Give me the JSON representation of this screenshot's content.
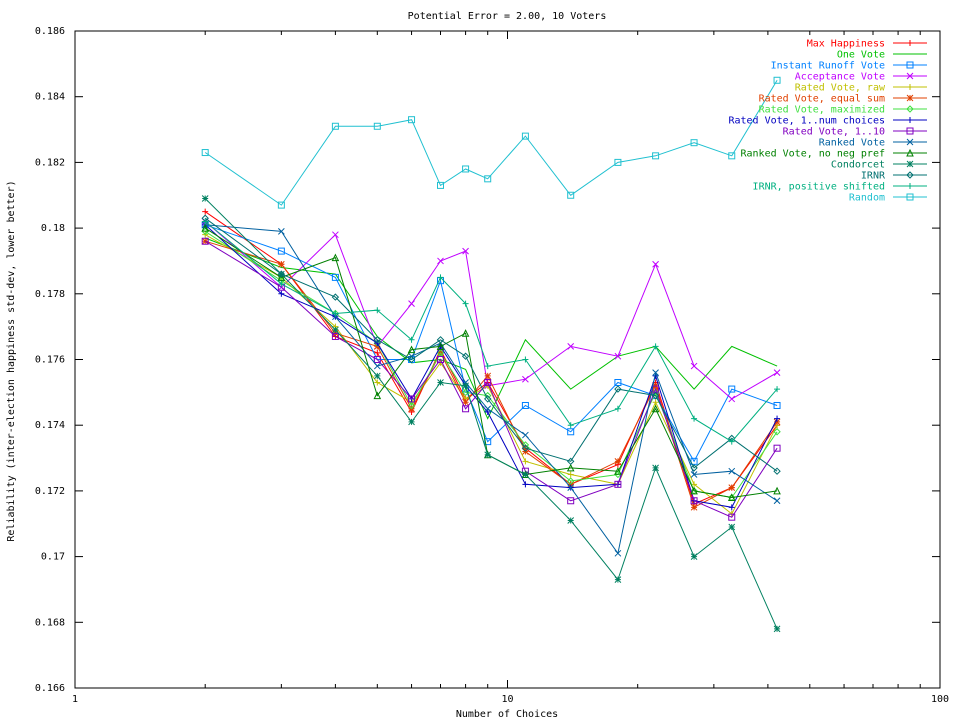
{
  "chart_data": {
    "type": "line",
    "title": "Potential Error = 2.00, 10 Voters",
    "xlabel": "Number of Choices",
    "ylabel": "Reliability (inter-election happiness std-dev, lower better)",
    "x_scale": "log",
    "xlim": [
      1,
      100
    ],
    "ylim": [
      0.166,
      0.186
    ],
    "x_ticks": [
      1,
      10,
      100
    ],
    "x_tick_labels": [
      "1",
      "10",
      "100"
    ],
    "y_ticks": [
      0.166,
      0.168,
      0.17,
      0.172,
      0.174,
      0.176,
      0.178,
      0.18,
      0.182,
      0.184,
      0.186
    ],
    "y_tick_labels": [
      "0.166",
      "0.168",
      "0.17",
      "0.172",
      "0.174",
      "0.176",
      "0.178",
      "0.18",
      "0.182",
      "0.184",
      "0.186"
    ],
    "grid": false,
    "legend_position": "top-right",
    "x": [
      2,
      3,
      4,
      5,
      6,
      7,
      8,
      9,
      11,
      14,
      18,
      22,
      27,
      33,
      42
    ],
    "series": [
      {
        "name": "Max Happiness",
        "color": "#ff0000",
        "marker": "plus",
        "values": [
          0.1805,
          0.1789,
          0.1767,
          0.1762,
          0.1744,
          0.1763,
          0.1748,
          0.1753,
          0.1733,
          0.1722,
          0.1728,
          0.1753,
          0.1716,
          0.1721,
          0.174
        ]
      },
      {
        "name": "One Vote",
        "color": "#00c000",
        "marker": "cross",
        "values": [
          0.1797,
          0.1788,
          0.1786,
          0.1767,
          0.1759,
          0.176,
          0.1757,
          0.1742,
          0.1766,
          0.1751,
          0.1761,
          0.1764,
          0.1751,
          0.1764,
          0.1758
        ]
      },
      {
        "name": "Instant Runoff Vote",
        "color": "#0080ff",
        "marker": "square",
        "values": [
          0.1801,
          0.1793,
          0.1785,
          0.176,
          0.176,
          0.1784,
          0.1751,
          0.1735,
          0.1746,
          0.1738,
          0.1753,
          0.1749,
          0.1729,
          0.1751,
          0.1746
        ]
      },
      {
        "name": "Acceptance Vote",
        "color": "#c000ff",
        "marker": "x",
        "values": [
          0.1802,
          0.1782,
          0.1798,
          0.1764,
          0.1777,
          0.179,
          0.1793,
          0.1752,
          0.1754,
          0.1764,
          0.1761,
          0.1789,
          0.1758,
          0.1748,
          0.1756
        ]
      },
      {
        "name": "Rated Vote, raw",
        "color": "#c0c000",
        "marker": "plus",
        "values": [
          0.1798,
          0.1785,
          0.177,
          0.1753,
          0.1747,
          0.1759,
          0.1748,
          0.1752,
          0.1729,
          0.1725,
          0.1722,
          0.1747,
          0.1722,
          0.1713,
          0.174
        ]
      },
      {
        "name": "Rated Vote, equal sum",
        "color": "#e04000",
        "marker": "star",
        "values": [
          0.1796,
          0.1789,
          0.1768,
          0.1764,
          0.1745,
          0.1762,
          0.1747,
          0.1755,
          0.1732,
          0.1722,
          0.1729,
          0.1752,
          0.1715,
          0.1721,
          0.1741
        ]
      },
      {
        "name": "Rated Vote, maximized",
        "color": "#40e040",
        "marker": "diamond",
        "values": [
          0.1799,
          0.1784,
          0.1774,
          0.1765,
          0.1746,
          0.1762,
          0.175,
          0.1749,
          0.1734,
          0.1723,
          0.1725,
          0.175,
          0.172,
          0.1718,
          0.1738
        ]
      },
      {
        "name": "Rated Vote, 1..num choices",
        "color": "#0000c0",
        "marker": "plus",
        "values": [
          0.1801,
          0.178,
          0.1773,
          0.1765,
          0.1748,
          0.1764,
          0.1752,
          0.1744,
          0.1722,
          0.1721,
          0.1722,
          0.1755,
          0.1717,
          0.1715,
          0.1742
        ]
      },
      {
        "name": "Rated Vote, 1..10",
        "color": "#8000c0",
        "marker": "square",
        "values": [
          0.1796,
          0.1782,
          0.1767,
          0.176,
          0.1748,
          0.176,
          0.1745,
          0.1753,
          0.1726,
          0.1717,
          0.1722,
          0.1751,
          0.1717,
          0.1712,
          0.1733
        ]
      },
      {
        "name": "Ranked Vote",
        "color": "#0060a0",
        "marker": "x",
        "values": [
          0.1801,
          0.1799,
          0.1773,
          0.1758,
          0.1761,
          0.1765,
          0.1753,
          0.1745,
          0.1737,
          0.1721,
          0.1701,
          0.1756,
          0.1725,
          0.1726,
          0.1717
        ]
      },
      {
        "name": "Ranked Vote, no neg pref",
        "color": "#008000",
        "marker": "triangle",
        "values": [
          0.18,
          0.1785,
          0.1791,
          0.1749,
          0.1763,
          0.1764,
          0.1768,
          0.1731,
          0.1725,
          0.1727,
          0.1726,
          0.1745,
          0.172,
          0.1718,
          0.172
        ]
      },
      {
        "name": "Condorcet",
        "color": "#008060",
        "marker": "star",
        "values": [
          0.1809,
          0.1786,
          0.1769,
          0.1755,
          0.1741,
          0.1753,
          0.1752,
          0.1731,
          0.1725,
          0.1711,
          0.1693,
          0.1727,
          0.17,
          0.1709,
          0.1678
        ]
      },
      {
        "name": "IRNR",
        "color": "#007070",
        "marker": "diamond",
        "values": [
          0.1803,
          0.1786,
          0.1779,
          0.1766,
          0.176,
          0.1766,
          0.1761,
          0.1748,
          0.1733,
          0.1729,
          0.1751,
          0.1749,
          0.1727,
          0.1736,
          0.1726
        ]
      },
      {
        "name": "IRNR, positive shifted",
        "color": "#00b080",
        "marker": "plus",
        "values": [
          0.1802,
          0.1783,
          0.1774,
          0.1775,
          0.1766,
          0.1785,
          0.1777,
          0.1758,
          0.176,
          0.174,
          0.1745,
          0.1764,
          0.1742,
          0.1735,
          0.1751
        ]
      },
      {
        "name": "Random",
        "color": "#20c0d0",
        "marker": "square",
        "values": [
          0.1823,
          0.1807,
          0.1831,
          0.1831,
          0.1833,
          0.1813,
          0.1818,
          0.1815,
          0.1828,
          0.181,
          0.182,
          0.1822,
          0.1826,
          0.1822,
          0.1845
        ]
      }
    ]
  }
}
